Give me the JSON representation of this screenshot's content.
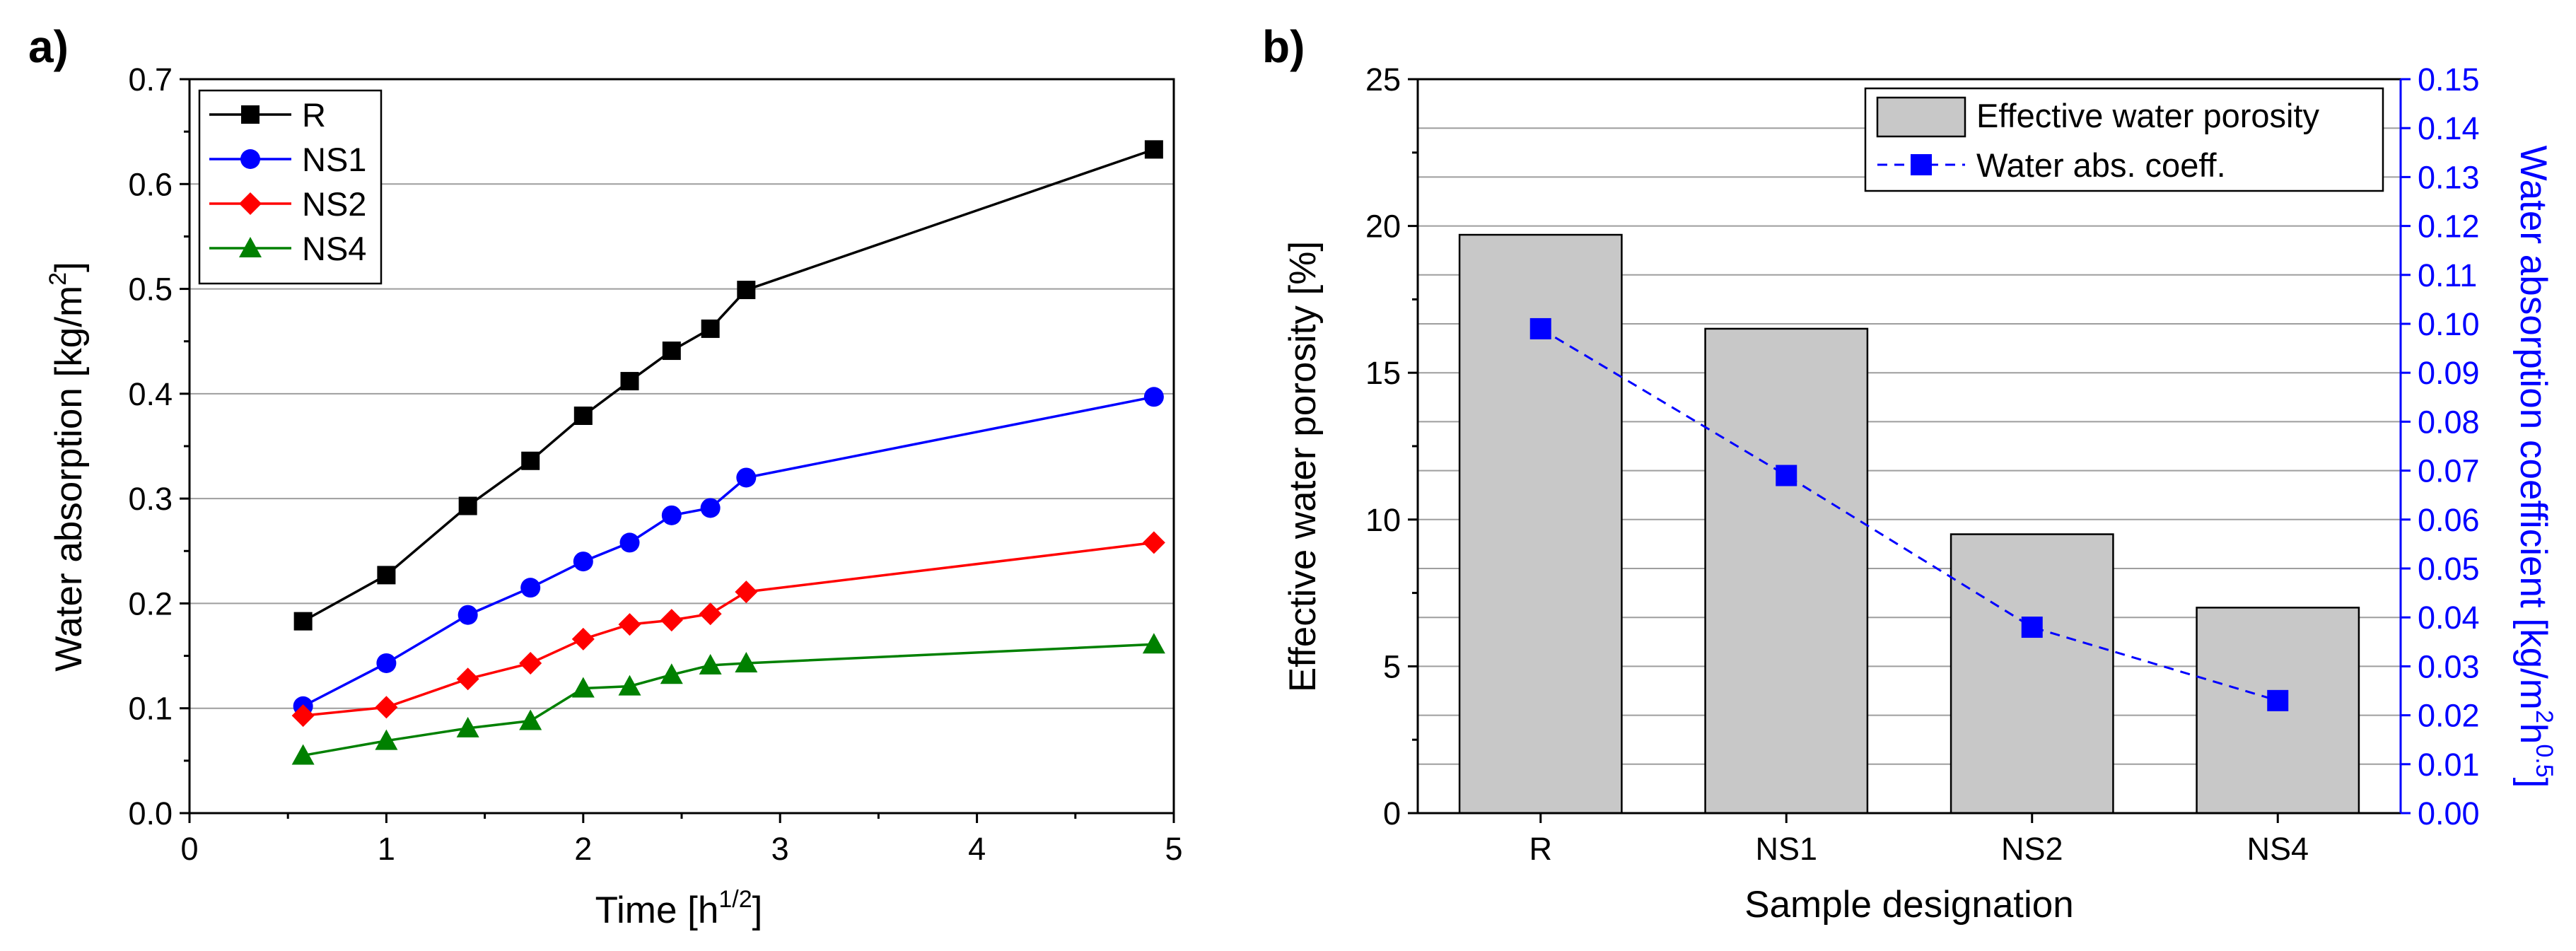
{
  "chart_data": [
    {
      "panel_label": "a)",
      "type": "line",
      "xlabel": "Time [h",
      "xlabel_sup": "1/2",
      "xlabel_end": "]",
      "ylabel": "Water absorption [kg/m",
      "ylabel_sup": "2",
      "ylabel_end": "]",
      "xlim": [
        0,
        5
      ],
      "ylim": [
        0,
        0.7
      ],
      "xticks": [
        "0",
        "1",
        "2",
        "3",
        "4",
        "5"
      ],
      "yticks": [
        "0.0",
        "0.1",
        "0.2",
        "0.3",
        "0.4",
        "0.5",
        "0.6",
        "0.7"
      ],
      "grid": true,
      "legend_position": "top-left",
      "x": [
        0.577,
        1.0,
        1.414,
        1.732,
        2.0,
        2.236,
        2.449,
        2.646,
        2.828,
        4.899
      ],
      "series": [
        {
          "name": "R",
          "color": "#000000",
          "marker": "square",
          "values": [
            0.183,
            0.227,
            0.293,
            0.336,
            0.379,
            0.412,
            0.441,
            0.462,
            0.499,
            0.633
          ]
        },
        {
          "name": "NS1",
          "color": "#0000ff",
          "marker": "circle",
          "values": [
            0.102,
            0.143,
            0.189,
            0.215,
            0.24,
            0.258,
            0.284,
            0.291,
            0.32,
            0.397
          ]
        },
        {
          "name": "NS2",
          "color": "#ff0000",
          "marker": "diamond",
          "values": [
            0.093,
            0.101,
            0.128,
            0.143,
            0.166,
            0.18,
            0.184,
            0.19,
            0.211,
            0.258
          ]
        },
        {
          "name": "NS4",
          "color": "#008000",
          "marker": "triangle",
          "values": [
            0.055,
            0.069,
            0.081,
            0.088,
            0.119,
            0.121,
            0.132,
            0.141,
            0.143,
            0.161
          ]
        }
      ]
    },
    {
      "panel_label": "b)",
      "type": "bar",
      "categories": [
        "R",
        "NS1",
        "NS2",
        "NS4"
      ],
      "xlabel": "Sample designation",
      "ylabel": "Effective water porosity [%]",
      "ylabel_right": "Water absorption coefficient [kg/m",
      "ylabel_right_sup1": "2",
      "ylabel_right_mid": "h",
      "ylabel_right_sup2": "0.5",
      "ylabel_right_end": "]",
      "ylim": [
        0,
        25
      ],
      "ylim_right": [
        0,
        0.15
      ],
      "yticks": [
        "0",
        "5",
        "10",
        "15",
        "20",
        "25"
      ],
      "yticks_right": [
        "0.00",
        "0.01",
        "0.02",
        "0.03",
        "0.04",
        "0.05",
        "0.06",
        "0.07",
        "0.08",
        "0.09",
        "0.10",
        "0.11",
        "0.12",
        "0.13",
        "0.14",
        "0.15"
      ],
      "grid": true,
      "legend_position": "top-right",
      "bar_color": "#c8c8c8",
      "line_color": "#0000ff",
      "series": [
        {
          "name": "Effective water porosity",
          "type": "bar",
          "axis": "left",
          "values": [
            19.7,
            16.5,
            9.5,
            7.0
          ]
        },
        {
          "name": "Water abs. coeff.",
          "type": "line",
          "axis": "right",
          "marker": "square",
          "style": "dashed",
          "values": [
            0.099,
            0.069,
            0.038,
            0.023
          ]
        }
      ]
    }
  ]
}
